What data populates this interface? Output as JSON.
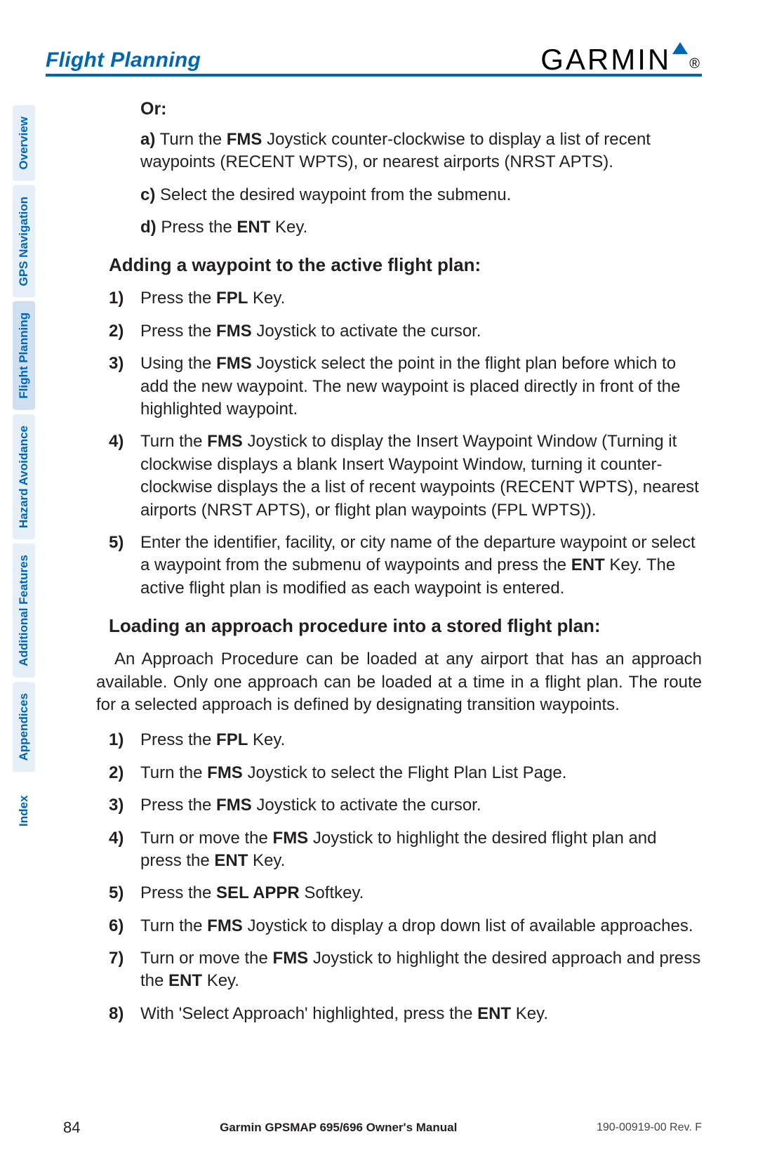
{
  "header": {
    "section_title": "Flight Planning",
    "logo_text": "GARMIN"
  },
  "side_tabs": [
    {
      "label": "Overview",
      "active": false
    },
    {
      "label": "GPS Navigation",
      "active": false
    },
    {
      "label": "Flight Planning",
      "active": true
    },
    {
      "label": "Hazard Avoidance",
      "active": false
    },
    {
      "label": "Additional Features",
      "active": false
    },
    {
      "label": "Appendices",
      "active": false
    },
    {
      "label": "Index",
      "active": false
    }
  ],
  "content": {
    "or_label": "Or:",
    "items": {
      "a_letter": "a)",
      "a_pre": " Turn the ",
      "a_bold1": "FMS",
      "a_post1": " Joystick counter-clockwise to display a list of recent waypoints (RECENT WPTS), or nearest airports (NRST APTS).",
      "c_letter": "c)",
      "c_text": " Select the desired waypoint from the submenu.",
      "d_letter": "d)",
      "d_pre": " Press the ",
      "d_bold": "ENT",
      "d_post": " Key."
    },
    "heading1": "Adding a waypoint to the active flight plan:",
    "list1": [
      {
        "n": "1)",
        "pre": "Press the ",
        "b1": "FPL",
        "post1": " Key."
      },
      {
        "n": "2)",
        "pre": "Press the ",
        "b1": "FMS",
        "post1": " Joystick to activate the cursor."
      },
      {
        "n": "3)",
        "pre": "Using the ",
        "b1": "FMS",
        "post1": " Joystick select the point in the flight plan before which to add the new waypoint.  The new waypoint is placed directly in front of the highlighted waypoint."
      },
      {
        "n": "4)",
        "pre": "Turn the ",
        "b1": "FMS",
        "post1": " Joystick to display the Insert Waypoint Window (Turning it clockwise displays a blank Insert Waypoint Window, turning it counter-clockwise displays the a list of recent waypoints (RECENT WPTS), nearest airports (NRST APTS), or flight plan waypoints (FPL WPTS))."
      },
      {
        "n": "5)",
        "pre": "Enter the identifier, facility, or city name of the departure waypoint or select a waypoint from the submenu of waypoints and press the ",
        "b1": "ENT",
        "post1": " Key.  The active flight plan is modified as each waypoint is entered."
      }
    ],
    "heading2": "Loading an approach procedure into a stored flight plan:",
    "para": "An Approach Procedure can be loaded at any airport that has an approach available.  Only one approach can be loaded at a time in a flight plan.  The route for a selected approach is defined by designating transition waypoints.",
    "list2": [
      {
        "n": "1)",
        "pre": "Press the ",
        "b1": "FPL",
        "post1": " Key."
      },
      {
        "n": "2)",
        "pre": "Turn the ",
        "b1": "FMS",
        "post1": " Joystick to select the Flight Plan List Page."
      },
      {
        "n": "3)",
        "pre": "Press the ",
        "b1": "FMS",
        "post1": " Joystick to activate the cursor."
      },
      {
        "n": "4)",
        "pre": "Turn or move the ",
        "b1": "FMS",
        "post1": " Joystick to highlight the desired flight plan and press the ",
        "b2": "ENT",
        "post2": " Key."
      },
      {
        "n": "5)",
        "pre": "Press the ",
        "b1": "SEL APPR",
        "post1": " Softkey."
      },
      {
        "n": "6)",
        "pre": "Turn the ",
        "b1": "FMS",
        "post1": " Joystick to display a drop down list of available approaches."
      },
      {
        "n": "7)",
        "pre": "Turn or move the ",
        "b1": "FMS",
        "post1": " Joystick to highlight the desired approach and press the ",
        "b2": "ENT",
        "post2": " Key."
      },
      {
        "n": "8)",
        "pre": "With 'Select Approach' highlighted, press the ",
        "b1": "ENT",
        "post1": " Key."
      }
    ]
  },
  "footer": {
    "page_num": "84",
    "manual": "Garmin GPSMAP 695/696 Owner's Manual",
    "rev": "190-00919-00  Rev. F"
  },
  "colors": {
    "accent": "#0066b3",
    "tab_bg": "#e6eef7",
    "tab_active_bg": "#cfdff0",
    "text": "#231f20"
  }
}
